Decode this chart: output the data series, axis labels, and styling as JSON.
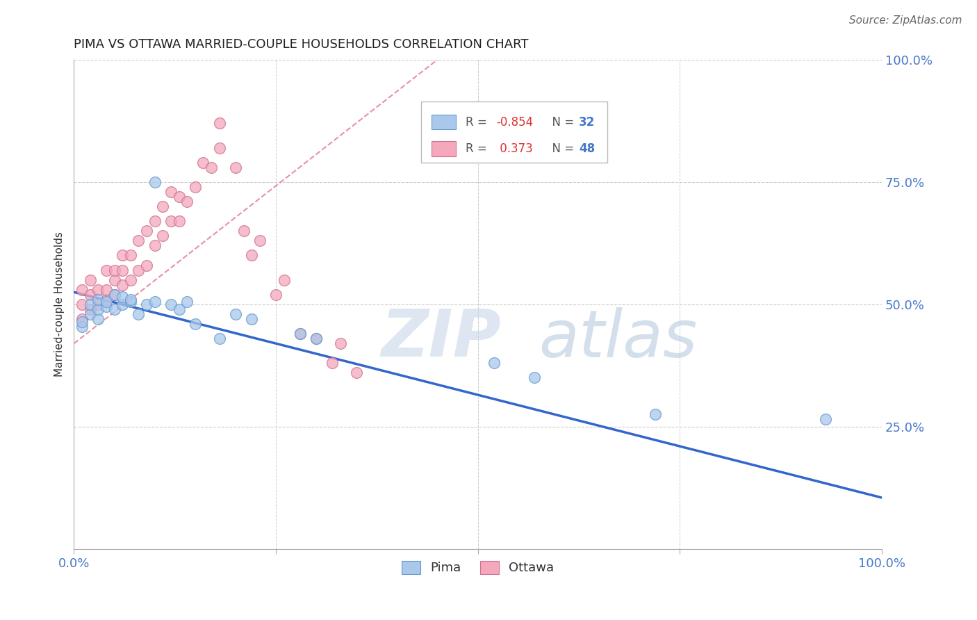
{
  "title": "PIMA VS OTTAWA MARRIED-COUPLE HOUSEHOLDS CORRELATION CHART",
  "source": "Source: ZipAtlas.com",
  "ylabel": "Married-couple Households",
  "xlim": [
    0.0,
    1.0
  ],
  "ylim": [
    0.0,
    1.0
  ],
  "pima_color": "#a8c8ec",
  "ottawa_color": "#f4a8bc",
  "pima_line_color": "#3366cc",
  "ottawa_line_color": "#e06080",
  "legend_label_pima": "Pima",
  "legend_label_ottawa": "Ottawa",
  "pima_R": -0.854,
  "pima_N": 32,
  "ottawa_R": 0.373,
  "ottawa_N": 48,
  "pima_x": [
    0.01,
    0.01,
    0.02,
    0.02,
    0.03,
    0.03,
    0.03,
    0.04,
    0.04,
    0.05,
    0.05,
    0.06,
    0.06,
    0.07,
    0.07,
    0.08,
    0.09,
    0.1,
    0.1,
    0.12,
    0.13,
    0.14,
    0.15,
    0.18,
    0.2,
    0.22,
    0.28,
    0.3,
    0.52,
    0.57,
    0.72,
    0.93
  ],
  "pima_y": [
    0.455,
    0.465,
    0.48,
    0.5,
    0.47,
    0.49,
    0.51,
    0.495,
    0.505,
    0.49,
    0.52,
    0.5,
    0.515,
    0.505,
    0.51,
    0.48,
    0.5,
    0.75,
    0.505,
    0.5,
    0.49,
    0.505,
    0.46,
    0.43,
    0.48,
    0.47,
    0.44,
    0.43,
    0.38,
    0.35,
    0.275,
    0.265
  ],
  "ottawa_x": [
    0.01,
    0.01,
    0.01,
    0.02,
    0.02,
    0.02,
    0.03,
    0.03,
    0.04,
    0.04,
    0.04,
    0.05,
    0.05,
    0.05,
    0.06,
    0.06,
    0.06,
    0.07,
    0.07,
    0.08,
    0.08,
    0.09,
    0.09,
    0.1,
    0.1,
    0.11,
    0.11,
    0.12,
    0.12,
    0.13,
    0.13,
    0.14,
    0.15,
    0.16,
    0.17,
    0.18,
    0.18,
    0.2,
    0.21,
    0.22,
    0.23,
    0.25,
    0.26,
    0.28,
    0.3,
    0.32,
    0.33,
    0.35
  ],
  "ottawa_y": [
    0.47,
    0.5,
    0.53,
    0.49,
    0.52,
    0.55,
    0.5,
    0.53,
    0.51,
    0.53,
    0.57,
    0.52,
    0.55,
    0.57,
    0.54,
    0.57,
    0.6,
    0.55,
    0.6,
    0.57,
    0.63,
    0.58,
    0.65,
    0.62,
    0.67,
    0.64,
    0.7,
    0.67,
    0.73,
    0.67,
    0.72,
    0.71,
    0.74,
    0.79,
    0.78,
    0.82,
    0.87,
    0.78,
    0.65,
    0.6,
    0.63,
    0.52,
    0.55,
    0.44,
    0.43,
    0.38,
    0.42,
    0.36
  ],
  "pima_line_x0": 0.0,
  "pima_line_y0": 0.525,
  "pima_line_x1": 1.0,
  "pima_line_y1": 0.105,
  "ottawa_line_x0": 0.0,
  "ottawa_line_y0": 0.42,
  "ottawa_line_x1": 0.45,
  "ottawa_line_y1": 1.0,
  "watermark_zip": "ZIP",
  "watermark_atlas": "atlas",
  "title_fontsize": 13,
  "axis_label_color": "#4477cc",
  "background_color": "#ffffff",
  "grid_color": "#cccccc",
  "axis_label_color_dark": "#333333"
}
